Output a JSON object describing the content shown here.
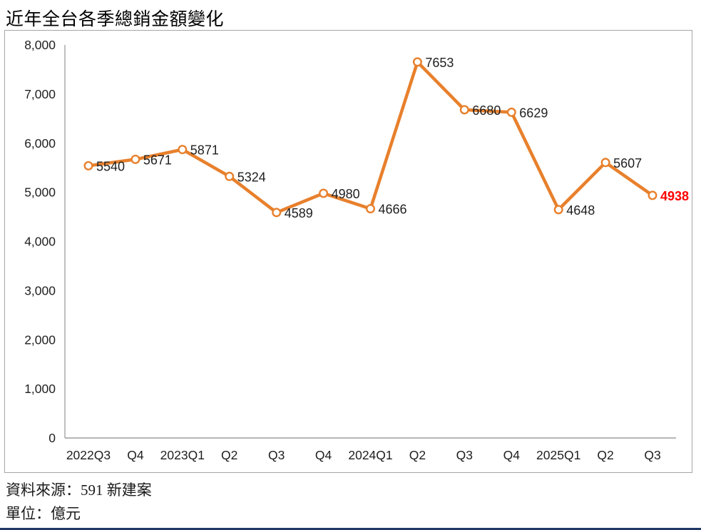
{
  "title": "近年全台各季總銷金額變化",
  "footer": {
    "source_line": "資料來源：591 新建案",
    "unit_line": "單位：億元"
  },
  "chart_data": {
    "type": "line",
    "title": "近年全台各季總銷金額變化",
    "categories": [
      "2022Q3",
      "Q4",
      "2023Q1",
      "Q2",
      "Q3",
      "Q4",
      "2024Q1",
      "Q2",
      "Q3",
      "Q4",
      "2025Q1",
      "Q2",
      "Q3"
    ],
    "values": [
      5540,
      5671,
      5871,
      5324,
      4589,
      4980,
      4666,
      7653,
      6680,
      6629,
      4648,
      5607,
      4938
    ],
    "xlabel": "",
    "ylabel": "",
    "ylim": [
      0,
      8000
    ],
    "ytick_step": 1000,
    "ytick_labels": [
      "0",
      "1,000",
      "2,000",
      "3,000",
      "4,000",
      "5,000",
      "6,000",
      "7,000",
      "8,000"
    ],
    "grid": false,
    "legend": "none",
    "data_labels": "right-of-point",
    "colors": {
      "line": "#e8802c",
      "marker_fill": "#ffffff",
      "marker_stroke": "#e8802c",
      "axis_line": "#9e9e9e",
      "frame_border": "#a6a6a6",
      "tick_text": "#1f1f1f",
      "data_label": "#1f1f1f",
      "last_data_label": "#ff0000",
      "bottom_rule": "#1f3864"
    },
    "last_point_highlighted": true
  }
}
